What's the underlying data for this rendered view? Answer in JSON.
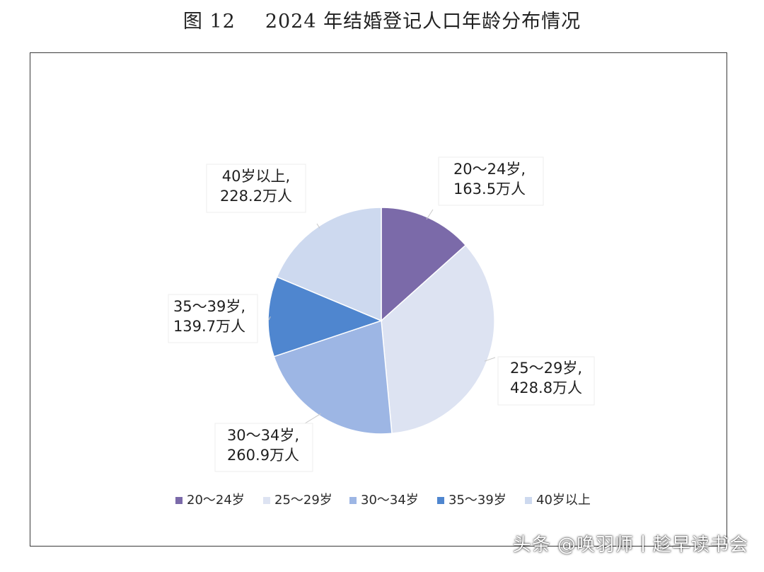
{
  "title": {
    "figure_no": "图 12",
    "text": "2024 年结婚登记人口年龄分布情况"
  },
  "chart_data": {
    "type": "pie",
    "title": "2024 年结婚登记人口年龄分布情况",
    "unit": "万人",
    "categories": [
      "20～24岁",
      "25～29岁",
      "30～34岁",
      "35～39岁",
      "40岁以上"
    ],
    "values": [
      163.5,
      428.8,
      260.9,
      139.7,
      228.2
    ],
    "data_labels": [
      [
        "20～24岁,",
        "163.5万人"
      ],
      [
        "25～29岁,",
        "428.8万人"
      ],
      [
        "30～34岁,",
        "260.9万人"
      ],
      [
        "35～39岁,",
        "139.7万人"
      ],
      [
        "40岁以上,",
        "228.2万人"
      ]
    ],
    "colors": [
      "#7b6aa9",
      "#dde3f2",
      "#9db6e4",
      "#4f86cf",
      "#cdd9ef"
    ],
    "start_angle_deg": 0,
    "direction": "clockwise",
    "legend_position": "bottom"
  },
  "watermark": "头条 @唤羽师丨趁早读书会"
}
